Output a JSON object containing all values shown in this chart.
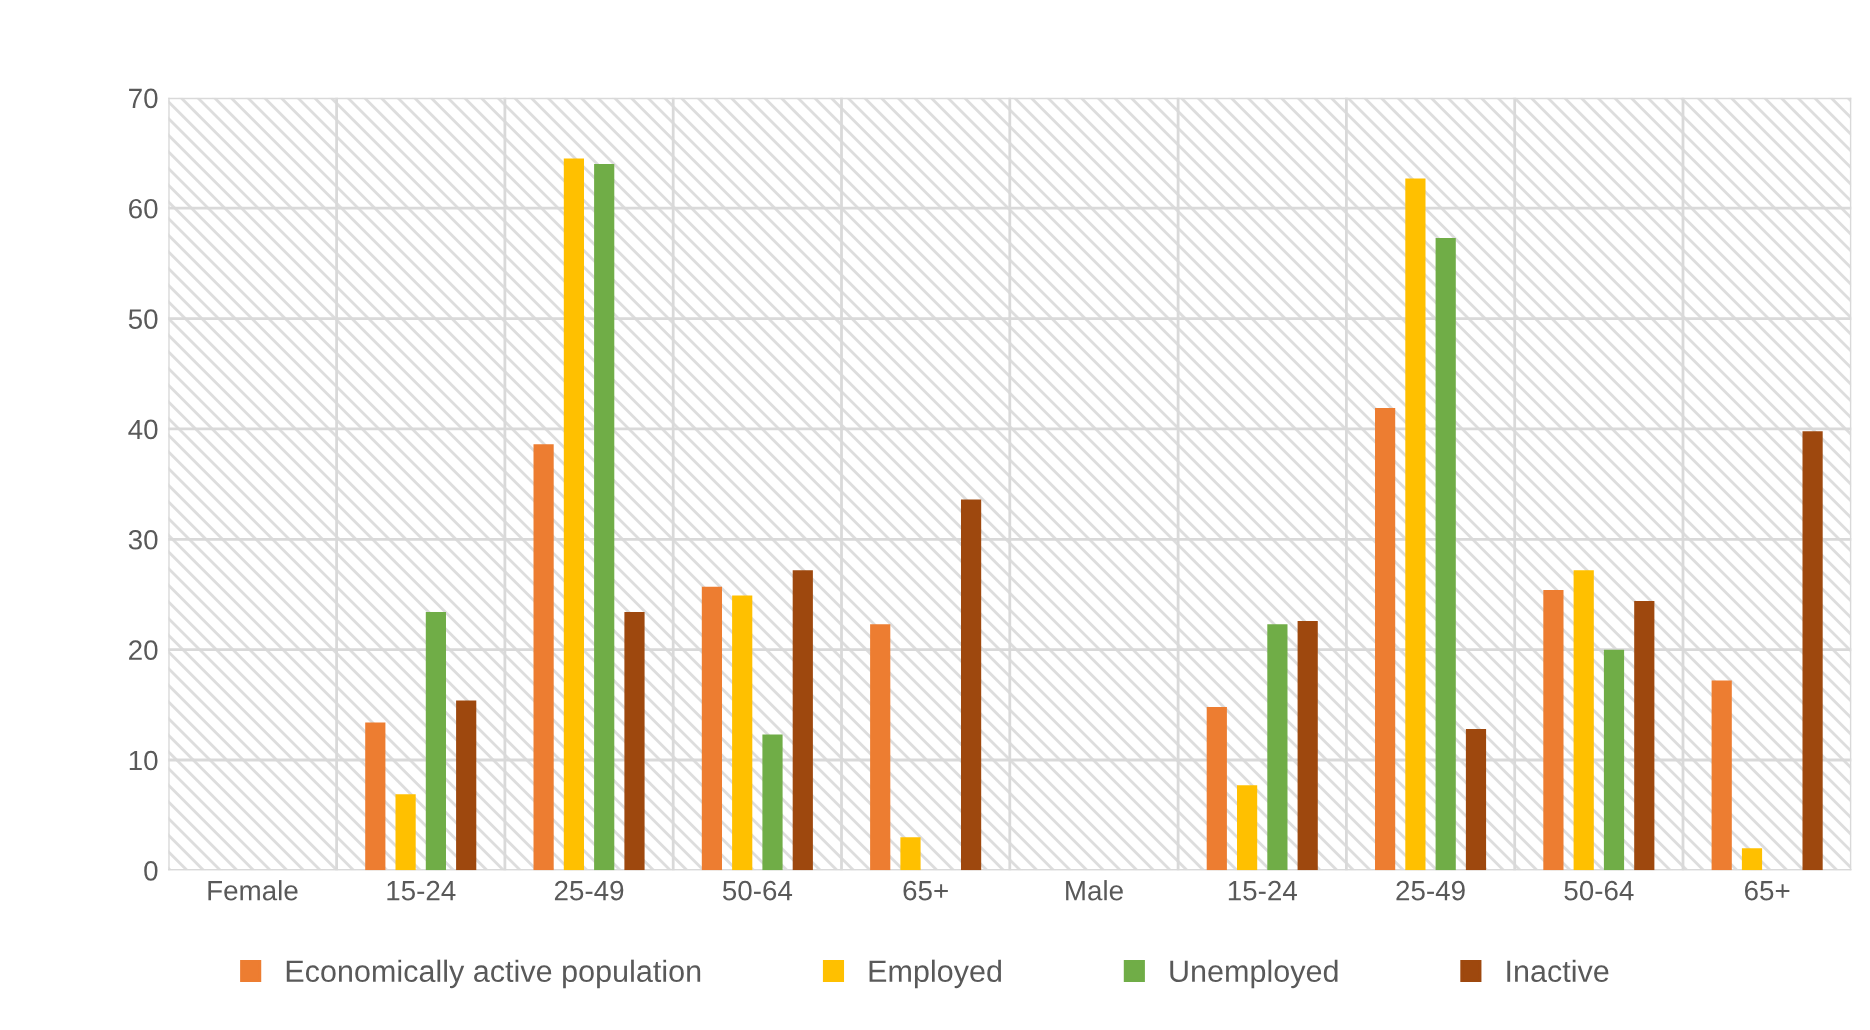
{
  "chart_data": {
    "type": "bar",
    "categories": [
      "Female",
      "15-24",
      "25-49",
      "50-64",
      "65+",
      "Male",
      "15-24",
      "25-49",
      "50-64",
      "65+"
    ],
    "series": [
      {
        "name": "Economically active population",
        "color": "#ed7d31",
        "values": [
          null,
          13.4,
          38.6,
          25.7,
          22.3,
          null,
          14.8,
          41.9,
          25.4,
          17.2
        ]
      },
      {
        "name": "Employed",
        "color": "#ffc000",
        "values": [
          null,
          6.9,
          64.5,
          24.9,
          3.0,
          null,
          7.7,
          62.7,
          27.2,
          2.0
        ]
      },
      {
        "name": "Unemployed",
        "color": "#70ad47",
        "values": [
          null,
          23.4,
          64.0,
          12.3,
          null,
          null,
          22.3,
          57.3,
          20.0,
          null
        ]
      },
      {
        "name": "Inactive",
        "color": "#9e480e",
        "values": [
          null,
          15.4,
          23.4,
          27.2,
          33.6,
          null,
          22.6,
          12.8,
          24.4,
          39.8
        ]
      }
    ],
    "ylim": [
      0,
      70
    ],
    "yticks": [
      0,
      10,
      20,
      30,
      40,
      50,
      60,
      70
    ],
    "grid": true,
    "legend": "bottom"
  }
}
